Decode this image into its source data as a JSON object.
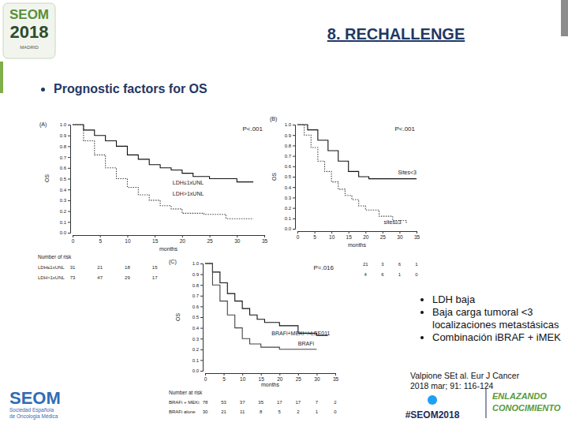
{
  "chart_data": [
    {
      "type": "line",
      "title": "(A)",
      "xlabel": "months",
      "ylabel": "OS",
      "annotations": [
        "P<.001"
      ],
      "xlim": [
        0,
        35
      ],
      "xticks": [
        0,
        5,
        10,
        15,
        20,
        25,
        30,
        35
      ],
      "ylim": [
        0,
        1
      ],
      "yticks": [
        {
          "value": 0,
          "label": "0.0"
        },
        0.1,
        0.2,
        0.3,
        0.4,
        0.5,
        0.6,
        0.7,
        0.8,
        0.9,
        {
          "value": 1,
          "label": "1.0"
        }
      ],
      "grid": false,
      "series": [
        {
          "name": "LDH≤1xUNL",
          "color": "#111111",
          "line_style": "solid",
          "x": [
            0,
            2,
            4,
            6,
            8,
            10,
            12,
            14,
            16,
            18,
            20,
            22,
            25,
            30,
            33
          ],
          "values": [
            1,
            0.95,
            0.9,
            0.85,
            0.8,
            0.72,
            0.68,
            0.63,
            0.6,
            0.58,
            0.55,
            0.52,
            0.5,
            0.47,
            0.47
          ]
        },
        {
          "name": "LDH>1xUNL",
          "color": "#444444",
          "line_style": "dotted",
          "x": [
            0,
            2,
            4,
            6,
            8,
            10,
            12,
            14,
            16,
            18,
            20,
            24,
            28,
            33
          ],
          "values": [
            1,
            0.85,
            0.72,
            0.6,
            0.5,
            0.42,
            0.35,
            0.3,
            0.25,
            0.22,
            0.18,
            0.17,
            0.13,
            0.13
          ]
        }
      ],
      "risk_table": {
        "title": "Number of risk",
        "times": [
          0,
          5,
          10,
          15
        ],
        "rows": [
          {
            "label": "LDH≤1xUNL",
            "values": [
              31,
              21,
              18,
              15
            ]
          },
          {
            "label": "LDH>1xUNL",
            "values": [
              73,
              47,
              29,
              17
            ]
          }
        ]
      }
    },
    {
      "type": "line",
      "title": "(B)",
      "xlabel": "months",
      "ylabel": "OS",
      "annotations": [
        "P<.001"
      ],
      "xlim": [
        0,
        35
      ],
      "xticks": [
        0,
        5,
        10,
        15,
        20,
        25,
        30,
        35
      ],
      "ylim": [
        0,
        1
      ],
      "yticks": [
        {
          "value": 0,
          "label": "0.0"
        },
        0.1,
        0.2,
        0.3,
        0.4,
        0.5,
        0.6,
        0.7,
        0.8,
        0.9,
        {
          "value": 1,
          "label": "1.0"
        }
      ],
      "grid": false,
      "series": [
        {
          "name": "Sites<3",
          "color": "#111111",
          "line_style": "solid",
          "x": [
            0,
            3,
            6,
            9,
            12,
            15,
            18,
            21,
            35
          ],
          "values": [
            1,
            0.95,
            0.85,
            0.75,
            0.65,
            0.55,
            0.5,
            0.48,
            0.48
          ]
        },
        {
          "name": "sites≥3",
          "color": "#444444",
          "line_style": "dotted",
          "x": [
            0,
            2,
            4,
            6,
            8,
            10,
            12,
            14,
            16,
            18,
            20,
            24,
            28,
            32
          ],
          "values": [
            1,
            0.9,
            0.78,
            0.65,
            0.55,
            0.45,
            0.38,
            0.32,
            0.28,
            0.22,
            0.18,
            0.12,
            0.08,
            0.05
          ]
        }
      ],
      "risk_table": {
        "times": [
          20,
          25,
          30,
          35
        ],
        "rows": [
          {
            "values": [
              21,
              3,
              6,
              1
            ]
          },
          {
            "values": [
              4,
              6,
              1,
              0
            ]
          }
        ]
      }
    },
    {
      "type": "line",
      "title": "(C)",
      "xlabel": "months",
      "ylabel": "OS",
      "annotations": [
        "P=.016"
      ],
      "xlim": [
        0,
        35
      ],
      "xticks": [
        0,
        5,
        10,
        15,
        20,
        25,
        30,
        35
      ],
      "ylim": [
        0,
        1
      ],
      "yticks": [
        {
          "value": 0,
          "label": "0.0"
        },
        0.1,
        0.2,
        0.3,
        0.4,
        0.5,
        0.6,
        0.7,
        0.8,
        0.9,
        {
          "value": 1,
          "label": "1.0"
        }
      ],
      "grid": false,
      "series": [
        {
          "name": "BRAFi+MEKI+/-LEE011",
          "color": "#111111",
          "line_style": "solid",
          "x": [
            0,
            2,
            4,
            6,
            8,
            10,
            12,
            14,
            16,
            20,
            25,
            30,
            33
          ],
          "values": [
            1,
            0.92,
            0.82,
            0.72,
            0.65,
            0.58,
            0.52,
            0.48,
            0.45,
            0.42,
            0.35,
            0.33,
            0.33
          ]
        },
        {
          "name": "BRAFi",
          "color": "#444444",
          "line_style": "solid",
          "x": [
            0,
            2,
            4,
            6,
            8,
            10,
            12,
            15,
            20,
            25,
            30
          ],
          "values": [
            1,
            0.8,
            0.65,
            0.52,
            0.4,
            0.3,
            0.25,
            0.22,
            0.2,
            0.2,
            0.2
          ]
        }
      ],
      "risk_table": {
        "title": "Number at risk",
        "times": [
          0,
          5,
          10,
          15,
          20,
          25,
          30,
          35
        ],
        "rows": [
          {
            "label": "BRAFi + MEKi",
            "values": [
              78,
              53,
              37,
              35,
              17,
              17,
              7,
              2
            ]
          },
          {
            "label": "BRAFi alone",
            "values": [
              30,
              21,
              11,
              8,
              5,
              2,
              1,
              0
            ]
          }
        ]
      }
    }
  ],
  "slide": {
    "header": "8. RECHALLENGE",
    "logo": {
      "name": "SEOM",
      "year": "2018",
      "city": "MADRID"
    },
    "subtitle": "Prognostic factors for OS",
    "bullets": [
      "LDH baja",
      "Baja carga tumoral <3 localizaciones metastásicas",
      "Combinación iBRAF + iMEK"
    ],
    "citation": [
      "Valpione SEt al. Eur J Cancer",
      "2018 mar; 91: 116-124"
    ],
    "footer": {
      "org": "SEOM",
      "org_full": [
        "Sociedad Española",
        "de Oncología Médica"
      ],
      "slogan": [
        "ENLAZANDO",
        "CONOCIMIENTO"
      ],
      "hashtag": "#SEOM2018"
    }
  }
}
